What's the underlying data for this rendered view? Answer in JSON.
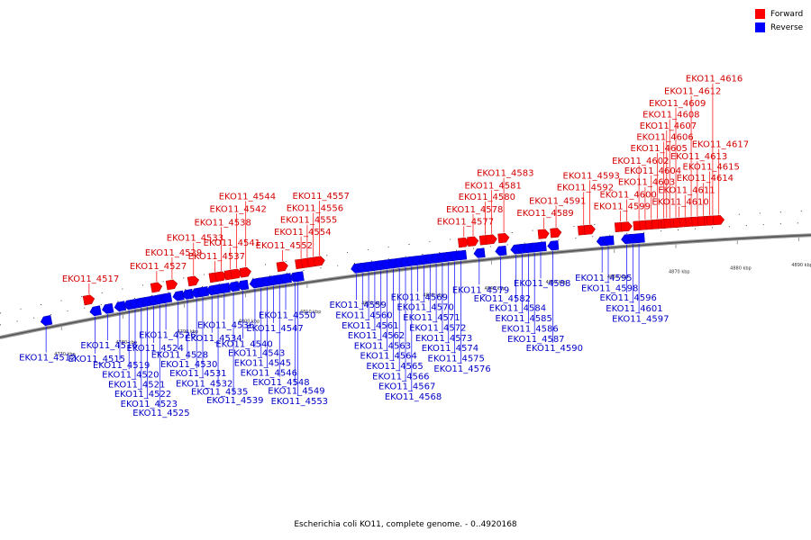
{
  "caption": "Escherichia coli KO11, complete genome. - 0..4920168",
  "legend": {
    "forward_label": "Forward",
    "reverse_label": "Reverse",
    "forward_color": "#ff0000",
    "reverse_color": "#0000ff"
  },
  "ticks": [
    {
      "pos_kbp": 4770,
      "label": "4770 kbp"
    },
    {
      "pos_kbp": 4780,
      "label": "4780 kbp"
    },
    {
      "pos_kbp": 4790,
      "label": "4790 kbp"
    },
    {
      "pos_kbp": 4800,
      "label": "4800 kbp"
    },
    {
      "pos_kbp": 4810,
      "label": "4810 kbp"
    },
    {
      "pos_kbp": 4820,
      "label": "4820 kbp"
    },
    {
      "pos_kbp": 4830,
      "label": "4830 kbp"
    },
    {
      "pos_kbp": 4840,
      "label": "4840 kbp"
    },
    {
      "pos_kbp": 4850,
      "label": "4850 kbp"
    },
    {
      "pos_kbp": 4860,
      "label": "4860 kbp"
    },
    {
      "pos_kbp": 4870,
      "label": "4870 kbp"
    },
    {
      "pos_kbp": 4880,
      "label": "4880 kbp"
    },
    {
      "pos_kbp": 4890,
      "label": "4890 kbp"
    }
  ],
  "genes": [
    {
      "name": "EKO11_4512",
      "strand": "-",
      "kbp": 4767.5
    },
    {
      "name": "EKO11_4515",
      "strand": "-",
      "kbp": 4775.5
    },
    {
      "name": "EKO11_4516",
      "strand": "-",
      "kbp": 4777.5
    },
    {
      "name": "EKO11_4517",
      "strand": "+",
      "kbp": 4774.5
    },
    {
      "name": "EKO11_4519",
      "strand": "-",
      "kbp": 4779.5
    },
    {
      "name": "EKO11_4520",
      "strand": "-",
      "kbp": 4781.0
    },
    {
      "name": "EKO11_4521",
      "strand": "-",
      "kbp": 4782.0
    },
    {
      "name": "EKO11_4522",
      "strand": "-",
      "kbp": 4783.0
    },
    {
      "name": "EKO11_4523",
      "strand": "-",
      "kbp": 4784.0
    },
    {
      "name": "EKO11_4524",
      "strand": "-",
      "kbp": 4785.0
    },
    {
      "name": "EKO11_4525",
      "strand": "-",
      "kbp": 4786.0
    },
    {
      "name": "EKO11_4526",
      "strand": "-",
      "kbp": 4787.0
    },
    {
      "name": "EKO11_4527",
      "strand": "+",
      "kbp": 4785.5
    },
    {
      "name": "EKO11_4528",
      "strand": "-",
      "kbp": 4789.0
    },
    {
      "name": "EKO11_4529",
      "strand": "+",
      "kbp": 4788.0
    },
    {
      "name": "EKO11_4530",
      "strand": "-",
      "kbp": 4790.5
    },
    {
      "name": "EKO11_4531",
      "strand": "-",
      "kbp": 4792.0
    },
    {
      "name": "EKO11_4532",
      "strand": "-",
      "kbp": 4793.0
    },
    {
      "name": "EKO11_4533",
      "strand": "+",
      "kbp": 4791.5
    },
    {
      "name": "EKO11_4534",
      "strand": "-",
      "kbp": 4794.5
    },
    {
      "name": "EKO11_4535",
      "strand": "-",
      "kbp": 4795.5
    },
    {
      "name": "EKO11_4536",
      "strand": "-",
      "kbp": 4796.5
    },
    {
      "name": "EKO11_4537",
      "strand": "+",
      "kbp": 4795.0
    },
    {
      "name": "EKO11_4538",
      "strand": "+",
      "kbp": 4796.0
    },
    {
      "name": "EKO11_4539",
      "strand": "-",
      "kbp": 4798.0
    },
    {
      "name": "EKO11_4540",
      "strand": "-",
      "kbp": 4799.5
    },
    {
      "name": "EKO11_4541",
      "strand": "+",
      "kbp": 4797.5
    },
    {
      "name": "EKO11_4542",
      "strand": "+",
      "kbp": 4798.5
    },
    {
      "name": "EKO11_4543",
      "strand": "-",
      "kbp": 4801.5
    },
    {
      "name": "EKO11_4544",
      "strand": "+",
      "kbp": 4800.0
    },
    {
      "name": "EKO11_4545",
      "strand": "-",
      "kbp": 4802.5
    },
    {
      "name": "EKO11_4546",
      "strand": "-",
      "kbp": 4803.5
    },
    {
      "name": "EKO11_4547",
      "strand": "-",
      "kbp": 4804.5
    },
    {
      "name": "EKO11_4548",
      "strand": "-",
      "kbp": 4805.5
    },
    {
      "name": "EKO11_4549",
      "strand": "-",
      "kbp": 4808.0
    },
    {
      "name": "EKO11_4550",
      "strand": "-",
      "kbp": 4806.5
    },
    {
      "name": "EKO11_4552",
      "strand": "+",
      "kbp": 4806.0
    },
    {
      "name": "EKO11_4553",
      "strand": "-",
      "kbp": 4808.5
    },
    {
      "name": "EKO11_4554",
      "strand": "+",
      "kbp": 4809.0
    },
    {
      "name": "EKO11_4555",
      "strand": "+",
      "kbp": 4810.0
    },
    {
      "name": "EKO11_4556",
      "strand": "+",
      "kbp": 4811.0
    },
    {
      "name": "EKO11_4557",
      "strand": "+",
      "kbp": 4812.0
    },
    {
      "name": "EKO11_4559",
      "strand": "-",
      "kbp": 4818.0
    },
    {
      "name": "EKO11_4560",
      "strand": "-",
      "kbp": 4819.0
    },
    {
      "name": "EKO11_4561",
      "strand": "-",
      "kbp": 4820.0
    },
    {
      "name": "EKO11_4562",
      "strand": "-",
      "kbp": 4821.0
    },
    {
      "name": "EKO11_4563",
      "strand": "-",
      "kbp": 4822.0
    },
    {
      "name": "EKO11_4564",
      "strand": "-",
      "kbp": 4823.0
    },
    {
      "name": "EKO11_4565",
      "strand": "-",
      "kbp": 4824.0
    },
    {
      "name": "EKO11_4566",
      "strand": "-",
      "kbp": 4825.0
    },
    {
      "name": "EKO11_4567",
      "strand": "-",
      "kbp": 4826.0
    },
    {
      "name": "EKO11_4568",
      "strand": "-",
      "kbp": 4827.0
    },
    {
      "name": "EKO11_4569",
      "strand": "-",
      "kbp": 4828.0
    },
    {
      "name": "EKO11_4570",
      "strand": "-",
      "kbp": 4829.0
    },
    {
      "name": "EKO11_4571",
      "strand": "-",
      "kbp": 4830.0
    },
    {
      "name": "EKO11_4572",
      "strand": "-",
      "kbp": 4831.0
    },
    {
      "name": "EKO11_4573",
      "strand": "-",
      "kbp": 4832.0
    },
    {
      "name": "EKO11_4574",
      "strand": "-",
      "kbp": 4833.0
    },
    {
      "name": "EKO11_4575",
      "strand": "-",
      "kbp": 4834.0
    },
    {
      "name": "EKO11_4576",
      "strand": "-",
      "kbp": 4835.0
    },
    {
      "name": "EKO11_4577",
      "strand": "+",
      "kbp": 4835.5
    },
    {
      "name": "EKO11_4578",
      "strand": "+",
      "kbp": 4837.0
    },
    {
      "name": "EKO11_4579",
      "strand": "-",
      "kbp": 4838.0
    },
    {
      "name": "EKO11_4580",
      "strand": "+",
      "kbp": 4839.0
    },
    {
      "name": "EKO11_4581",
      "strand": "+",
      "kbp": 4840.0
    },
    {
      "name": "EKO11_4582",
      "strand": "-",
      "kbp": 4841.5
    },
    {
      "name": "EKO11_4583",
      "strand": "+",
      "kbp": 4842.0
    },
    {
      "name": "EKO11_4584",
      "strand": "-",
      "kbp": 4844.0
    },
    {
      "name": "EKO11_4585",
      "strand": "-",
      "kbp": 4845.0
    },
    {
      "name": "EKO11_4586",
      "strand": "-",
      "kbp": 4846.0
    },
    {
      "name": "EKO11_4587",
      "strand": "-",
      "kbp": 4847.0
    },
    {
      "name": "EKO11_4588",
      "strand": "-",
      "kbp": 4848.0
    },
    {
      "name": "EKO11_4589",
      "strand": "+",
      "kbp": 4848.5
    },
    {
      "name": "EKO11_4590",
      "strand": "-",
      "kbp": 4850.0
    },
    {
      "name": "EKO11_4591",
      "strand": "+",
      "kbp": 4850.5
    },
    {
      "name": "EKO11_4592",
      "strand": "+",
      "kbp": 4855.0
    },
    {
      "name": "EKO11_4593",
      "strand": "+",
      "kbp": 4856.0
    },
    {
      "name": "EKO11_4595",
      "strand": "-",
      "kbp": 4858.0
    },
    {
      "name": "EKO11_4596",
      "strand": "-",
      "kbp": 4862.0
    },
    {
      "name": "EKO11_4597",
      "strand": "-",
      "kbp": 4864.0
    },
    {
      "name": "EKO11_4598",
      "strand": "-",
      "kbp": 4859.0
    },
    {
      "name": "EKO11_4599",
      "strand": "+",
      "kbp": 4861.0
    },
    {
      "name": "EKO11_4600",
      "strand": "+",
      "kbp": 4862.0
    },
    {
      "name": "EKO11_4601",
      "strand": "-",
      "kbp": 4863.0
    },
    {
      "name": "EKO11_4602",
      "strand": "+",
      "kbp": 4864.0
    },
    {
      "name": "EKO11_4603",
      "strand": "+",
      "kbp": 4865.0
    },
    {
      "name": "EKO11_4604",
      "strand": "+",
      "kbp": 4866.0
    },
    {
      "name": "EKO11_4605",
      "strand": "+",
      "kbp": 4867.0
    },
    {
      "name": "EKO11_4606",
      "strand": "+",
      "kbp": 4868.0
    },
    {
      "name": "EKO11_4607",
      "strand": "+",
      "kbp": 4868.5
    },
    {
      "name": "EKO11_4608",
      "strand": "+",
      "kbp": 4869.0
    },
    {
      "name": "EKO11_4609",
      "strand": "+",
      "kbp": 4870.0
    },
    {
      "name": "EKO11_4610",
      "strand": "+",
      "kbp": 4870.5
    },
    {
      "name": "EKO11_4611",
      "strand": "+",
      "kbp": 4871.5
    },
    {
      "name": "EKO11_4612",
      "strand": "+",
      "kbp": 4872.5
    },
    {
      "name": "EKO11_4613",
      "strand": "+",
      "kbp": 4873.5
    },
    {
      "name": "EKO11_4614",
      "strand": "+",
      "kbp": 4874.5
    },
    {
      "name": "EKO11_4615",
      "strand": "+",
      "kbp": 4875.5
    },
    {
      "name": "EKO11_4616",
      "strand": "+",
      "kbp": 4876.0
    },
    {
      "name": "EKO11_4617",
      "strand": "+",
      "kbp": 4877.0
    }
  ]
}
